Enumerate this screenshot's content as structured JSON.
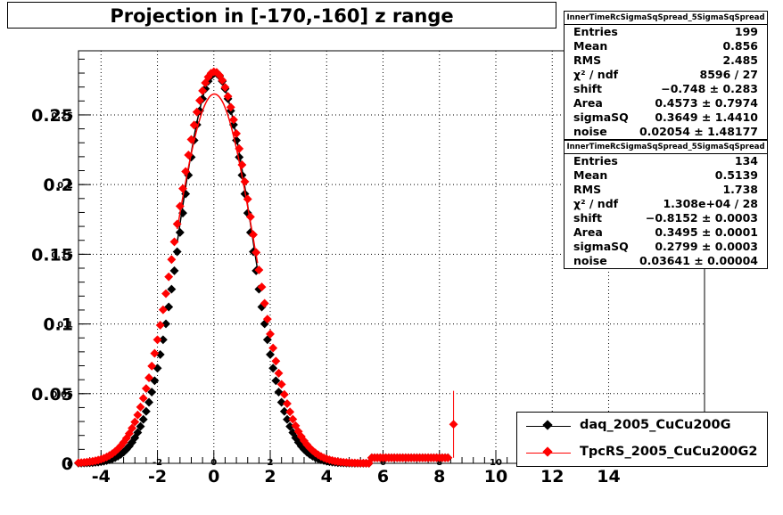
{
  "title": "Projection in [-170,-160] z range",
  "chart_data": {
    "type": "scatter",
    "title": "Projection in [-170,-160] z range",
    "xlabel": "",
    "ylabel": "",
    "xlim": [
      -4.8,
      17.4
    ],
    "ylim": [
      0,
      0.296
    ],
    "x_ticks": [
      "-4",
      "-2",
      "0",
      "2",
      "4",
      "6",
      "8",
      "10",
      "12",
      "14"
    ],
    "x_ticks_small": [
      "-4",
      "-2",
      "0",
      "2",
      "4",
      "6",
      "8",
      "10",
      "12",
      "14"
    ],
    "y_ticks": [
      "0",
      "0.05",
      "0.1",
      "0.15",
      "0.2",
      "0.25"
    ],
    "y_ticks_small": [
      "0",
      "0.05",
      "0.1",
      "0.15",
      "0.2",
      "0.25"
    ],
    "grid": true,
    "series": [
      {
        "name": "daq_2005_CuCu200G",
        "color": "#000000",
        "peak": 0.28,
        "mean": 0.05,
        "sigma": 1.22,
        "fit_peak": 0.279
      },
      {
        "name": "TpcRS_2005_CuCu200G2",
        "color": "#ff0000",
        "peak": 0.281,
        "mean": 0.02,
        "sigma": 1.33,
        "fit_peak": 0.265
      }
    ],
    "outlier": {
      "x": 8.5,
      "y": 0.028,
      "err": 0.024
    }
  },
  "stats": [
    {
      "header": "InnerTimeRcSigmaSqSpread_5SigmaSqSpread",
      "rows": [
        {
          "k": "Entries",
          "v": "199"
        },
        {
          "k": "Mean",
          "v": "0.856"
        },
        {
          "k": "RMS",
          "v": "2.485"
        },
        {
          "k": "χ² / ndf",
          "v": "8596 / 27"
        },
        {
          "k": "shift",
          "v": "−0.748 ± 0.283"
        },
        {
          "k": "Area",
          "v": "0.4573 ± 0.7974"
        },
        {
          "k": "sigmaSQ",
          "v": "0.3649 ± 1.4410"
        },
        {
          "k": "noise",
          "v": "0.02054 ± 1.48177"
        }
      ]
    },
    {
      "header": "InnerTimeRcSigmaSqSpread_5SigmaSqSpread",
      "rows": [
        {
          "k": "Entries",
          "v": "134"
        },
        {
          "k": "Mean",
          "v": "0.5139"
        },
        {
          "k": "RMS",
          "v": "1.738"
        },
        {
          "k": "χ² / ndf",
          "v": "1.308e+04 / 28"
        },
        {
          "k": "shift",
          "v": "−0.8152 ± 0.0003"
        },
        {
          "k": "Area",
          "v": "0.3495 ± 0.0001"
        },
        {
          "k": "sigmaSQ",
          "v": "0.2799 ± 0.0003"
        },
        {
          "k": "noise",
          "v": "0.03641 ± 0.00004"
        }
      ]
    }
  ],
  "legend": [
    {
      "label": "daq_2005_CuCu200G",
      "color": "#000000"
    },
    {
      "label": "TpcRS_2005_CuCu200G2",
      "color": "#ff0000"
    }
  ]
}
